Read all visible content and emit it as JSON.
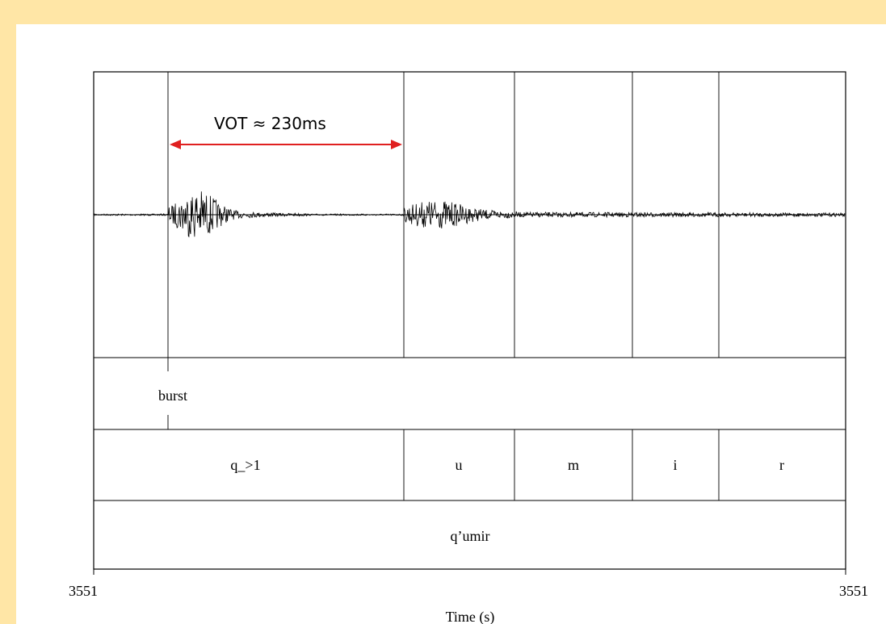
{
  "annotation": {
    "vot_label": "VOT ≈ 230ms",
    "arrow_color": "#E02020"
  },
  "tiers": {
    "point_tier": {
      "label": "burst"
    },
    "segments": [
      "q_>1",
      "u",
      "m",
      "i",
      "r"
    ],
    "word": "q’umir"
  },
  "axis": {
    "x_start_label": "3551",
    "x_end_label": "3551",
    "x_title": "Time (s)"
  },
  "colors": {
    "background": "#FFE6A6",
    "panel": "#FFFFFF",
    "ink": "#000000"
  }
}
